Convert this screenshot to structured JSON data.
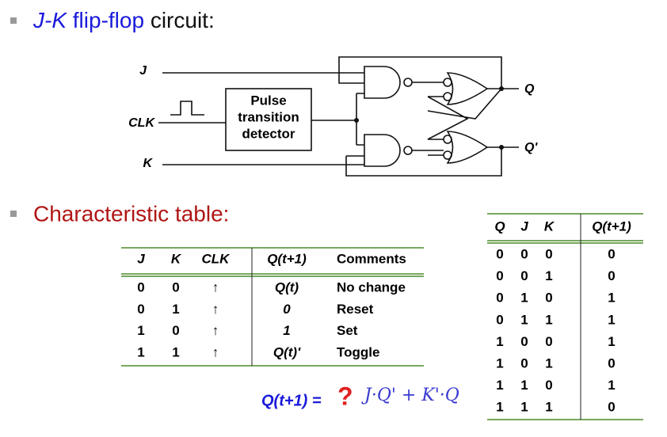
{
  "bullets": [
    {
      "parts": [
        "J-K",
        "flip-flop",
        "circuit:"
      ]
    },
    {
      "parts": [
        "Characteristic table:"
      ]
    }
  ],
  "circuit": {
    "inputs": [
      "J",
      "CLK",
      "K"
    ],
    "block": [
      "Pulse",
      "transition",
      "detector"
    ],
    "outputs": [
      "Q",
      "Q'"
    ]
  },
  "table1": {
    "headers": [
      "J",
      "K",
      "CLK",
      "Q(t+1)",
      "Comments"
    ],
    "rows": [
      [
        "0",
        "0",
        "↑",
        "Q(t)",
        "No change"
      ],
      [
        "0",
        "1",
        "↑",
        "0",
        "Reset"
      ],
      [
        "1",
        "0",
        "↑",
        "1",
        "Set"
      ],
      [
        "1",
        "1",
        "↑",
        "Q(t)'",
        "Toggle"
      ]
    ]
  },
  "table2": {
    "headers": [
      "Q",
      "J",
      "K",
      "Q(t+1)"
    ],
    "rows": [
      [
        "0",
        "0",
        "0",
        "0"
      ],
      [
        "0",
        "0",
        "1",
        "0"
      ],
      [
        "0",
        "1",
        "0",
        "1"
      ],
      [
        "0",
        "1",
        "1",
        "1"
      ],
      [
        "1",
        "0",
        "0",
        "1"
      ],
      [
        "1",
        "0",
        "1",
        "0"
      ],
      [
        "1",
        "1",
        "0",
        "1"
      ],
      [
        "1",
        "1",
        "1",
        "0"
      ]
    ]
  },
  "equation": {
    "lhs": "Q(t+1) =",
    "mark": "?",
    "handwritten": "J·Q' + K'·Q"
  }
}
